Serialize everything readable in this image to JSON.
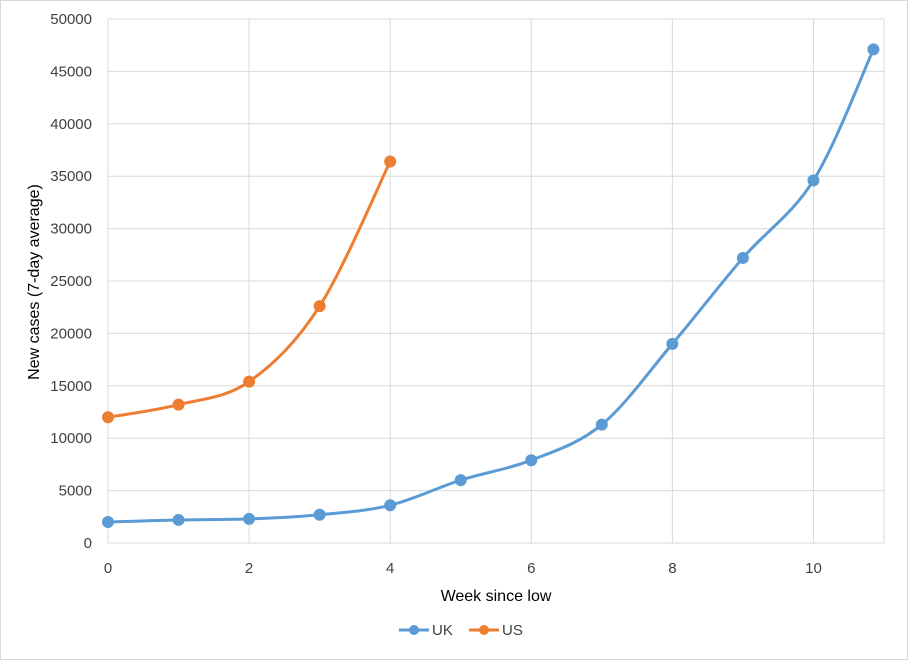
{
  "chart_data": {
    "type": "line",
    "title": "",
    "xlabel": "Week since low",
    "ylabel": "New cases (7-day average)",
    "xlim": [
      0,
      11
    ],
    "ylim": [
      0,
      50000
    ],
    "x_ticks": [
      0,
      2,
      4,
      6,
      8,
      10
    ],
    "y_ticks": [
      0,
      5000,
      10000,
      15000,
      20000,
      25000,
      30000,
      35000,
      40000,
      45000,
      50000
    ],
    "grid": true,
    "legend_position": "bottom",
    "series": [
      {
        "name": "UK",
        "color": "#5b9bd5",
        "x": [
          0,
          1,
          2,
          3,
          4,
          5,
          6,
          7,
          8,
          9,
          10,
          10.85
        ],
        "values": [
          2000,
          2200,
          2300,
          2700,
          3600,
          6000,
          7900,
          11300,
          19000,
          27200,
          34600,
          47100
        ]
      },
      {
        "name": "US",
        "color": "#ed7d31",
        "x": [
          0,
          1,
          2,
          3,
          4
        ],
        "values": [
          12000,
          13200,
          15400,
          22600,
          36400
        ]
      }
    ]
  }
}
